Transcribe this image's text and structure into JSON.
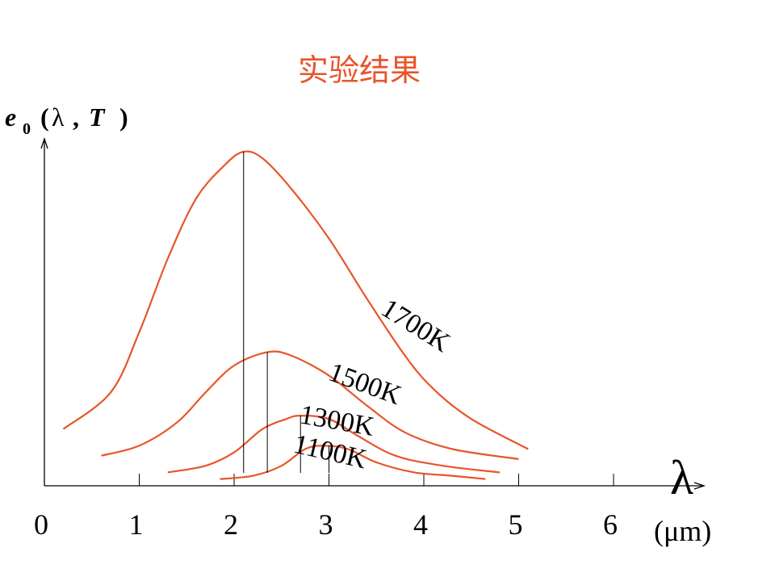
{
  "title": "实验结果",
  "chart_data": {
    "type": "line",
    "title": "实验结果",
    "ylabel": "e0(λ, T)",
    "xlabel": "λ",
    "xunit": "(μm)",
    "xlim": [
      0,
      6.5
    ],
    "xticks": [
      "0",
      "1",
      "2",
      "3",
      "4",
      "5",
      "6"
    ],
    "series": [
      {
        "name": "1700K",
        "peak_x": 2.1,
        "points": [
          [
            0.2,
            0.17
          ],
          [
            0.7,
            0.28
          ],
          [
            1.0,
            0.46
          ],
          [
            1.3,
            0.68
          ],
          [
            1.6,
            0.86
          ],
          [
            1.9,
            0.96
          ],
          [
            2.1,
            1.0
          ],
          [
            2.3,
            0.98
          ],
          [
            2.6,
            0.89
          ],
          [
            3.0,
            0.74
          ],
          [
            3.4,
            0.56
          ],
          [
            3.8,
            0.39
          ],
          [
            4.1,
            0.29
          ],
          [
            4.5,
            0.2
          ],
          [
            5.1,
            0.11
          ]
        ]
      },
      {
        "name": "1500K",
        "peak_x": 2.35,
        "points": [
          [
            0.6,
            0.09
          ],
          [
            1.0,
            0.12
          ],
          [
            1.4,
            0.19
          ],
          [
            1.7,
            0.28
          ],
          [
            2.0,
            0.36
          ],
          [
            2.35,
            0.4
          ],
          [
            2.6,
            0.39
          ],
          [
            3.0,
            0.33
          ],
          [
            3.4,
            0.24
          ],
          [
            3.8,
            0.16
          ],
          [
            4.3,
            0.11
          ],
          [
            5.0,
            0.08
          ]
        ]
      },
      {
        "name": "1300K",
        "peak_x": 2.7,
        "points": [
          [
            1.3,
            0.04
          ],
          [
            1.7,
            0.06
          ],
          [
            2.0,
            0.1
          ],
          [
            2.3,
            0.17
          ],
          [
            2.55,
            0.2
          ],
          [
            2.7,
            0.21
          ],
          [
            3.0,
            0.2
          ],
          [
            3.3,
            0.15
          ],
          [
            3.7,
            0.09
          ],
          [
            4.2,
            0.06
          ],
          [
            4.8,
            0.04
          ]
        ]
      },
      {
        "name": "1100K",
        "peak_x": 3.0,
        "points": [
          [
            1.85,
            0.02
          ],
          [
            2.2,
            0.03
          ],
          [
            2.5,
            0.06
          ],
          [
            2.75,
            0.11
          ],
          [
            2.95,
            0.12
          ],
          [
            3.2,
            0.11
          ],
          [
            3.5,
            0.07
          ],
          [
            3.9,
            0.04
          ],
          [
            4.3,
            0.03
          ],
          [
            4.65,
            0.02
          ]
        ]
      }
    ]
  }
}
